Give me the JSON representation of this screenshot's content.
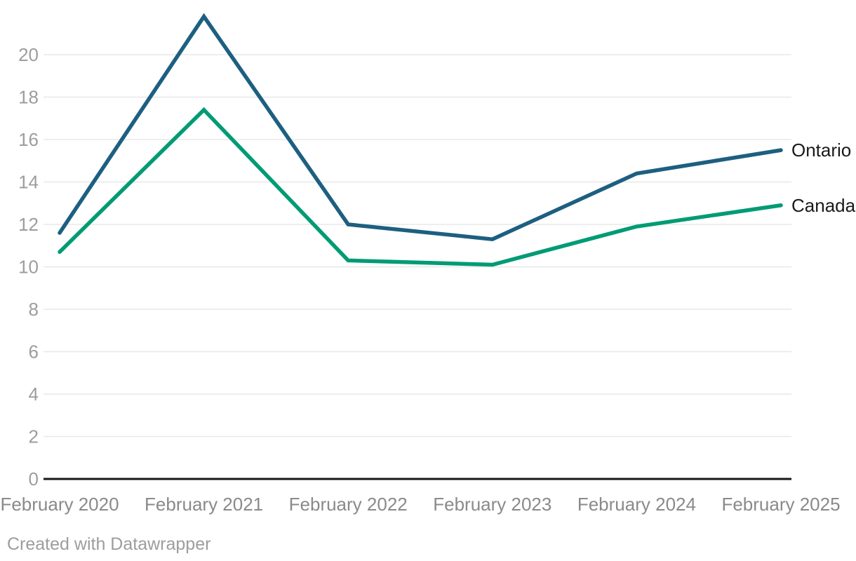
{
  "chart_data": {
    "type": "line",
    "title": "",
    "xlabel": "",
    "ylabel": "",
    "categories": [
      "February 2020",
      "February 2021",
      "February 2022",
      "February 2023",
      "February 2024",
      "February 2025"
    ],
    "series": [
      {
        "name": "Ontario",
        "color": "#1d5f80",
        "values": [
          11.6,
          21.8,
          12.0,
          11.3,
          14.4,
          15.5
        ]
      },
      {
        "name": "Canada",
        "color": "#009b75",
        "values": [
          10.7,
          17.4,
          10.3,
          10.1,
          11.9,
          12.9
        ]
      }
    ],
    "yticks": [
      0,
      2,
      4,
      6,
      8,
      10,
      12,
      14,
      16,
      18,
      20
    ],
    "ylim": [
      0,
      22
    ],
    "grid": "horizontal",
    "legend_position": "direct-labels-at-line-end",
    "style": {
      "grid_color": "#e8e8e8",
      "axis_color": "#161616",
      "ytick_color": "#9d9d9d",
      "xtick_color": "#8a8a8a",
      "series_label_color": "#1a1a1a",
      "credit_color": "#9d9d9d",
      "background": "#ffffff"
    }
  },
  "footer": {
    "credit": "Created with Datawrapper"
  }
}
